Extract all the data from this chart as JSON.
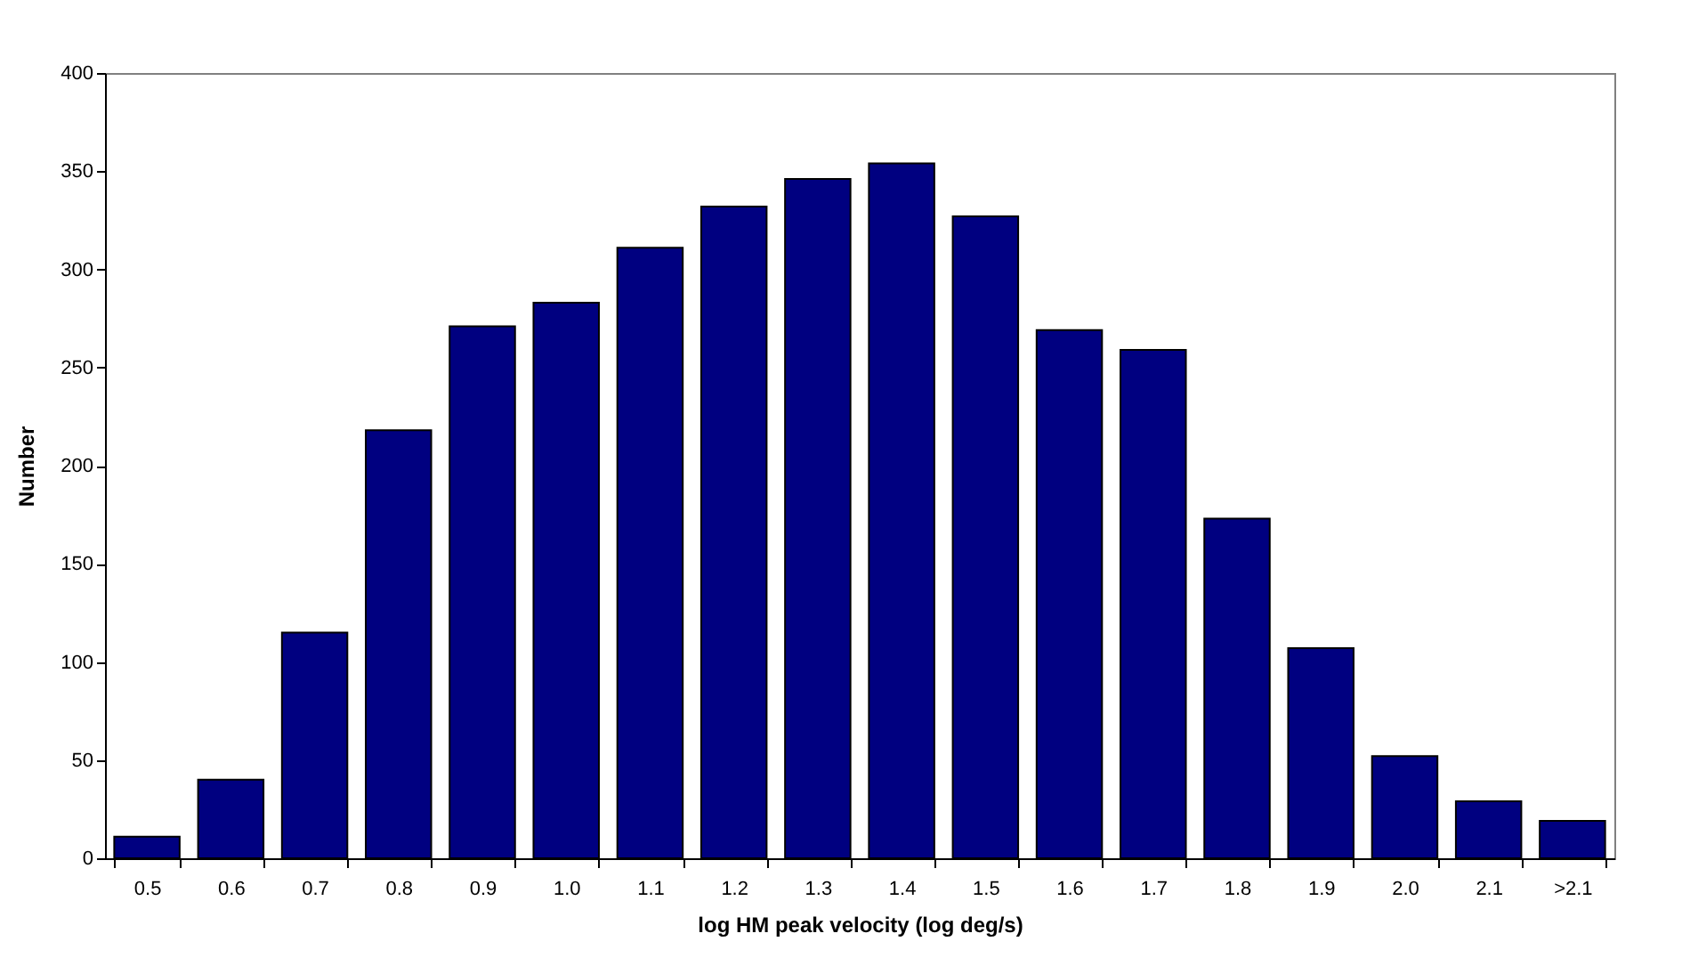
{
  "chart_data": {
    "type": "bar",
    "xlabel": "log HM peak velocity (log deg/s)",
    "ylabel": "Number",
    "categories": [
      "0.5",
      "0.6",
      "0.7",
      "0.8",
      "0.9",
      "1.0",
      "1.1",
      "1.2",
      "1.3",
      "1.4",
      "1.5",
      "1.6",
      "1.7",
      "1.8",
      "1.9",
      "2.0",
      "2.1",
      ">2.1"
    ],
    "values": [
      11,
      40,
      115,
      218,
      271,
      283,
      311,
      332,
      346,
      354,
      327,
      269,
      259,
      173,
      107,
      52,
      29,
      19
    ],
    "color": "#000080",
    "ylim": [
      0,
      400
    ],
    "yticks": [
      0,
      50,
      100,
      150,
      200,
      250,
      300,
      350,
      400
    ],
    "grid": false
  }
}
